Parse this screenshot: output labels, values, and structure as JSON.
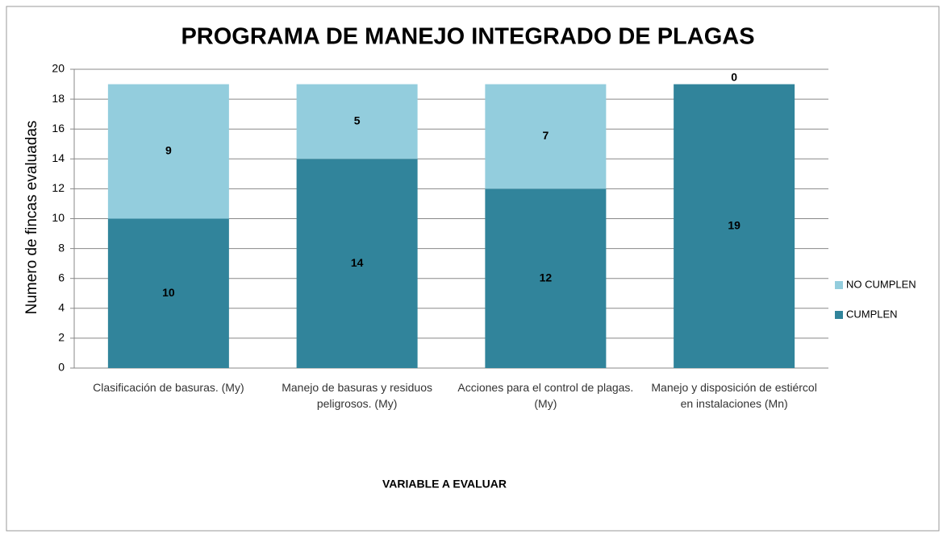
{
  "chart_data": {
    "type": "stacked_bar",
    "title": "PROGRAMA DE MANEJO INTEGRADO DE PLAGAS",
    "x_label": "VARIABLE A EVALUAR",
    "y_label": "Numero de fincas evaluadas",
    "categories": [
      "Clasificación de basuras. (My)",
      "Manejo de basuras y residuos peligrosos. (My)",
      "Acciones para el control de plagas. (My)",
      "Manejo y disposición de estiércol en instalaciones (Mn)"
    ],
    "series": [
      {
        "name": "CUMPLEN",
        "color": "#31849b",
        "values": [
          10,
          14,
          12,
          19
        ]
      },
      {
        "name": "NO CUMPLEN",
        "color": "#93cddd",
        "values": [
          9,
          5,
          7,
          0
        ]
      }
    ],
    "ylim": [
      0,
      20
    ],
    "yticks": [
      0,
      2,
      4,
      6,
      8,
      10,
      12,
      14,
      16,
      18,
      20
    ],
    "grid": true,
    "legend": "right"
  }
}
